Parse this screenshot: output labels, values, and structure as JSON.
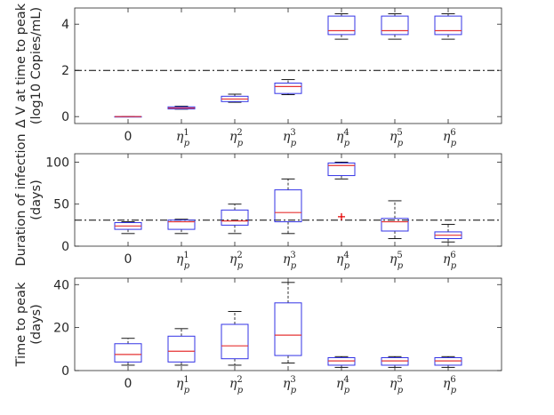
{
  "chart_data": [
    {
      "type": "boxplot",
      "id": "dv",
      "ylabel_line1": "Δ V at time to peak",
      "ylabel_line2": "(log10 Copies/mL)",
      "ylim": [
        -0.3,
        4.7
      ],
      "yticks": [
        0,
        2,
        4
      ],
      "reference_line": 2,
      "categories": [
        {
          "base": "0",
          "sup": ""
        },
        {
          "base": "η",
          "sub": "p",
          "sup": "1"
        },
        {
          "base": "η",
          "sub": "p",
          "sup": "2"
        },
        {
          "base": "η",
          "sub": "p",
          "sup": "3"
        },
        {
          "base": "η",
          "sub": "p",
          "sup": "4"
        },
        {
          "base": "η",
          "sub": "p",
          "sup": "5"
        },
        {
          "base": "η",
          "sub": "p",
          "sup": "6"
        }
      ],
      "boxes": [
        {
          "min": 0,
          "q1": 0,
          "median": 0,
          "q3": 0,
          "max": 0,
          "outliers": []
        },
        {
          "min": 0.32,
          "q1": 0.33,
          "median": 0.37,
          "q3": 0.42,
          "max": 0.45,
          "outliers": []
        },
        {
          "min": 0.62,
          "q1": 0.65,
          "median": 0.76,
          "q3": 0.88,
          "max": 0.97,
          "outliers": []
        },
        {
          "min": 0.95,
          "q1": 1.0,
          "median": 1.3,
          "q3": 1.45,
          "max": 1.6,
          "outliers": []
        },
        {
          "min": 3.35,
          "q1": 3.55,
          "median": 3.72,
          "q3": 4.35,
          "max": 4.45,
          "outliers": []
        },
        {
          "min": 3.35,
          "q1": 3.55,
          "median": 3.72,
          "q3": 4.35,
          "max": 4.45,
          "outliers": []
        },
        {
          "min": 3.35,
          "q1": 3.55,
          "median": 3.72,
          "q3": 4.35,
          "max": 4.45,
          "outliers": []
        }
      ]
    },
    {
      "type": "boxplot",
      "id": "dur",
      "ylabel_line1": "Duration of infection",
      "ylabel_line2": "(days)",
      "ylim": [
        0,
        110
      ],
      "yticks": [
        0,
        50,
        100
      ],
      "reference_line": 31,
      "categories": [
        {
          "base": "0",
          "sup": ""
        },
        {
          "base": "η",
          "sub": "p",
          "sup": "1"
        },
        {
          "base": "η",
          "sub": "p",
          "sup": "2"
        },
        {
          "base": "η",
          "sub": "p",
          "sup": "3"
        },
        {
          "base": "η",
          "sub": "p",
          "sup": "4"
        },
        {
          "base": "η",
          "sub": "p",
          "sup": "5"
        },
        {
          "base": "η",
          "sub": "p",
          "sup": "6"
        }
      ],
      "boxes": [
        {
          "min": 15,
          "q1": 20,
          "median": 24,
          "q3": 28,
          "max": 29,
          "outliers": []
        },
        {
          "min": 15,
          "q1": 20,
          "median": 29,
          "q3": 31,
          "max": 32,
          "outliers": []
        },
        {
          "min": 15,
          "q1": 25,
          "median": 30,
          "q3": 43,
          "max": 50,
          "outliers": []
        },
        {
          "min": 15,
          "q1": 29,
          "median": 40,
          "q3": 67,
          "max": 80,
          "outliers": []
        },
        {
          "min": 80,
          "q1": 84,
          "median": 96,
          "q3": 99,
          "max": 100,
          "outliers": [
            35
          ]
        },
        {
          "min": 9,
          "q1": 18,
          "median": 29,
          "q3": 33,
          "max": 54,
          "outliers": []
        },
        {
          "min": 5,
          "q1": 9,
          "median": 13,
          "q3": 17,
          "max": 26,
          "outliers": []
        }
      ]
    },
    {
      "type": "boxplot",
      "id": "ttp",
      "ylabel_line1": "Time to peak",
      "ylabel_line2": "(days)",
      "ylim": [
        0,
        43
      ],
      "yticks": [
        0,
        20,
        40
      ],
      "reference_line": null,
      "categories": [
        {
          "base": "0",
          "sup": ""
        },
        {
          "base": "η",
          "sub": "p",
          "sup": "1"
        },
        {
          "base": "η",
          "sub": "p",
          "sup": "2"
        },
        {
          "base": "η",
          "sub": "p",
          "sup": "3"
        },
        {
          "base": "η",
          "sub": "p",
          "sup": "4"
        },
        {
          "base": "η",
          "sub": "p",
          "sup": "5"
        },
        {
          "base": "η",
          "sub": "p",
          "sup": "6"
        }
      ],
      "boxes": [
        {
          "min": 2.5,
          "q1": 4,
          "median": 7.5,
          "q3": 12.5,
          "max": 15,
          "outliers": []
        },
        {
          "min": 2.5,
          "q1": 4,
          "median": 9,
          "q3": 16,
          "max": 19.5,
          "outliers": []
        },
        {
          "min": 2.5,
          "q1": 5.5,
          "median": 11.5,
          "q3": 21.5,
          "max": 27.5,
          "outliers": []
        },
        {
          "min": 3.5,
          "q1": 7,
          "median": 16.5,
          "q3": 31.5,
          "max": 41,
          "outliers": []
        },
        {
          "min": 1.5,
          "q1": 2.5,
          "median": 4.5,
          "q3": 6,
          "max": 6.5,
          "outliers": []
        },
        {
          "min": 1.5,
          "q1": 2.5,
          "median": 4.5,
          "q3": 6,
          "max": 6.5,
          "outliers": []
        },
        {
          "min": 1.5,
          "q1": 2.5,
          "median": 4.5,
          "q3": 6,
          "max": 6.5,
          "outliers": []
        }
      ]
    }
  ],
  "colors": {
    "box": "#3333e6",
    "median": "#e63333",
    "whisker": "#000000",
    "axis": "#262626",
    "reference": "#000000",
    "outlier": "#e60000"
  }
}
